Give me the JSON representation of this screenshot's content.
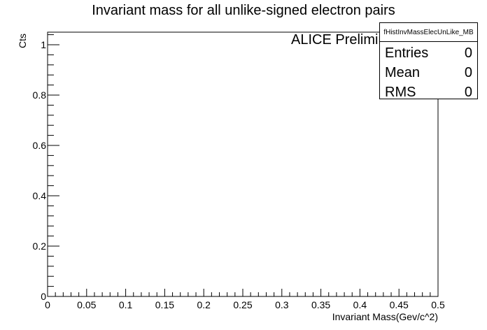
{
  "chart_data": {
    "type": "bar",
    "title": "Invariant mass for all unlike-signed electron pairs",
    "xlabel": "Invariant Mass(Gev/c^2)",
    "ylabel": "Cts",
    "xlim": [
      0,
      0.5
    ],
    "ylim": [
      0,
      1.05
    ],
    "x_ticks": [
      "0",
      "0.05",
      "0.1",
      "0.15",
      "0.2",
      "0.25",
      "0.3",
      "0.35",
      "0.4",
      "0.45",
      "0.5"
    ],
    "y_ticks": [
      "0",
      "0.2",
      "0.4",
      "0.6",
      "0.8",
      "1"
    ],
    "series": [],
    "grid": false,
    "annotation": "ALICE Preliminary",
    "stats_box": {
      "name": "fHistInvMassElecUnLike_MB",
      "entries_label": "Entries",
      "entries_value": "0",
      "mean_label": "Mean",
      "mean_value": "0",
      "rms_label": "RMS",
      "rms_value": "0"
    }
  }
}
